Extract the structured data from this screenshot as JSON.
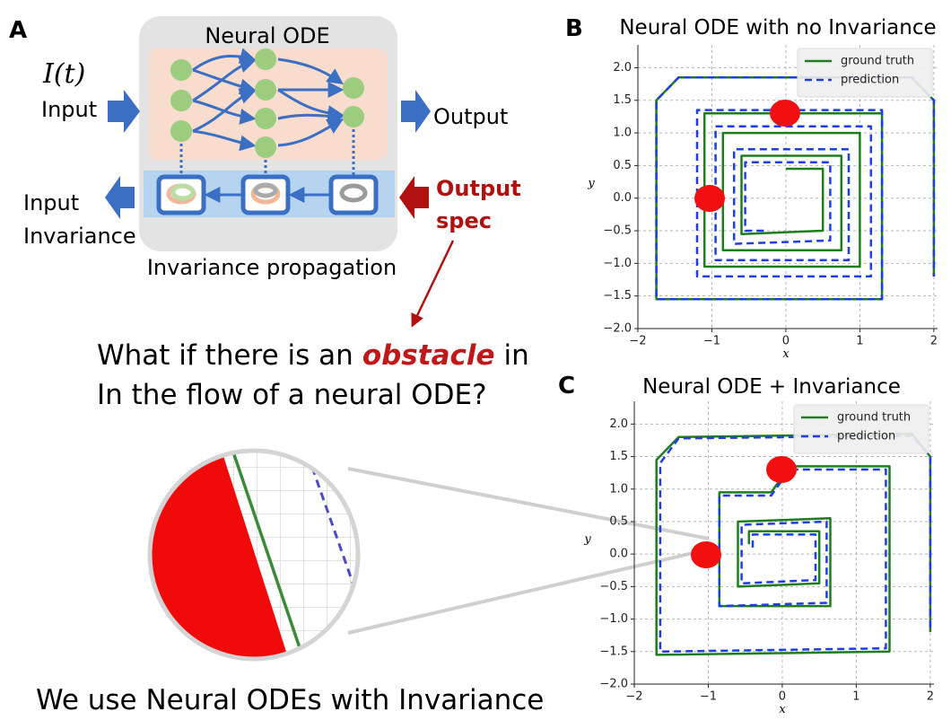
{
  "panel_labels": [
    "A",
    "B",
    "C"
  ],
  "diagram": {
    "title": "Neural ODE",
    "input_symbol": "I(t)",
    "input": "Input",
    "output": "Output",
    "input_invariance": [
      "Input",
      "Invariance"
    ],
    "output_spec": [
      "Output",
      "spec"
    ],
    "caption": "Invariance propagation"
  },
  "question": {
    "before": "What if there is an",
    "emphasis": "obstacle",
    "after": "in",
    "line2": "In the flow of a neural ODE?"
  },
  "conclusion": "We use Neural ODEs with Invariance",
  "chart_data": [
    {
      "type": "line",
      "title": "Neural ODE with no Invariance",
      "xlabel": "x",
      "ylabel": "y",
      "xlim": [
        -2,
        2.05
      ],
      "ylim": [
        -2,
        2.35
      ],
      "xticks": [
        {
          "value": -2,
          "label": "−2"
        },
        {
          "value": -1,
          "label": "−1"
        },
        0,
        1,
        2
      ],
      "yticks": [
        {
          "value": -2,
          "label": "−2.0"
        },
        {
          "value": -1.5,
          "label": "−1.5"
        },
        {
          "value": -1,
          "label": "−1.0"
        },
        {
          "value": -0.5,
          "label": "−0.5"
        },
        {
          "value": 0,
          "label": "0.0"
        },
        {
          "value": 0.5,
          "label": "0.5"
        },
        {
          "value": 1,
          "label": "1.0"
        },
        {
          "value": 1.5,
          "label": "1.5"
        },
        {
          "value": 2,
          "label": "2.0"
        }
      ],
      "grid": true,
      "legend": "upper right",
      "series": [
        {
          "name": "ground truth",
          "color": "#1e7d1e",
          "style": "solid",
          "x": [
            0,
            0.5,
            0.5,
            -0.6,
            -0.6,
            0.75,
            0.75,
            -0.85,
            -0.85,
            1.0,
            1.0,
            -1.1,
            -1.1,
            1.3,
            1.3,
            -1.75,
            -1.75,
            -1.45,
            1.7,
            2.0,
            2.0
          ],
          "y": [
            0.45,
            0.45,
            -0.5,
            -0.55,
            0.65,
            0.65,
            -0.8,
            -0.8,
            1.0,
            1.0,
            -1.05,
            -1.05,
            1.3,
            1.3,
            -1.55,
            -1.55,
            1.5,
            1.85,
            1.85,
            1.5,
            -1.2
          ]
        },
        {
          "name": "prediction",
          "color": "#1f3de6",
          "style": "dashed",
          "x": [
            -0.3,
            -0.55,
            -0.55,
            0.6,
            0.6,
            -0.7,
            -0.7,
            0.85,
            0.85,
            -0.95,
            -0.95,
            1.15,
            1.15,
            -1.2,
            -1.2,
            1.3,
            1.3,
            -1.75,
            -1.75,
            -1.45,
            1.7,
            2.0,
            2.0
          ],
          "y": [
            -0.5,
            -0.5,
            0.55,
            0.55,
            -0.65,
            -0.7,
            0.75,
            0.75,
            -0.95,
            -0.95,
            1.1,
            1.1,
            -1.2,
            -1.2,
            1.35,
            1.35,
            -1.55,
            -1.55,
            1.5,
            1.85,
            1.85,
            1.5,
            -1.2
          ]
        }
      ]
    },
    {
      "type": "line",
      "title": "Neural ODE + Invariance",
      "xlabel": "x",
      "ylabel": "y",
      "xlim": [
        -2,
        2.05
      ],
      "ylim": [
        -2,
        2.35
      ],
      "xticks": [
        {
          "value": -2,
          "label": "−2"
        },
        {
          "value": -1,
          "label": "−1"
        },
        0,
        1,
        2
      ],
      "yticks": [
        {
          "value": -2,
          "label": "−2.0"
        },
        {
          "value": -1.5,
          "label": "−1.5"
        },
        {
          "value": -1,
          "label": "−1.0"
        },
        {
          "value": -0.5,
          "label": "−0.5"
        },
        {
          "value": 0,
          "label": "0.0"
        },
        {
          "value": 0.5,
          "label": "0.5"
        },
        {
          "value": 1,
          "label": "1.0"
        },
        {
          "value": 1.5,
          "label": "1.5"
        },
        {
          "value": 2,
          "label": "2.0"
        }
      ],
      "grid": true,
      "legend": "upper right",
      "series": [
        {
          "name": "ground truth",
          "color": "#1e7d1e",
          "style": "solid",
          "x": [
            -0.45,
            -0.45,
            0.5,
            0.5,
            -0.6,
            -0.6,
            0.65,
            0.65,
            -0.85,
            -0.85,
            -0.15,
            0.1,
            1.45,
            1.45,
            -1.7,
            -1.7,
            -1.4,
            1.75,
            2.0,
            2.0
          ],
          "y": [
            0.15,
            0.35,
            0.35,
            -0.45,
            -0.5,
            0.5,
            0.55,
            -0.8,
            -0.8,
            0.95,
            0.95,
            1.35,
            1.35,
            -1.5,
            -1.55,
            1.45,
            1.8,
            1.85,
            1.5,
            -1.2
          ]
        },
        {
          "name": "prediction",
          "color": "#1f3de6",
          "style": "dashed",
          "x": [
            -0.4,
            -0.4,
            0.45,
            0.45,
            -0.55,
            -0.55,
            0.6,
            0.6,
            -0.85,
            -0.85,
            -0.15,
            0.1,
            1.4,
            1.4,
            -1.65,
            -1.65,
            -1.4,
            1.75,
            2.0,
            2.0
          ],
          "y": [
            0.1,
            0.3,
            0.3,
            -0.4,
            -0.45,
            0.45,
            0.5,
            -0.75,
            -0.8,
            0.9,
            0.9,
            1.3,
            1.3,
            -1.45,
            -1.5,
            1.4,
            1.78,
            1.82,
            1.5,
            -1.2
          ]
        }
      ]
    }
  ]
}
